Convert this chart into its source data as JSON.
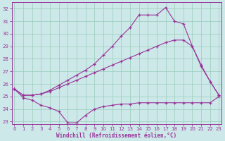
{
  "xlabel": "Windchill (Refroidissement éolien,°C)",
  "bg_color": "#cce8e8",
  "grid_color": "#99ccbb",
  "line_color": "#993399",
  "ylim": [
    22.8,
    32.5
  ],
  "xlim": [
    -0.3,
    23.3
  ],
  "yticks": [
    23,
    24,
    25,
    26,
    27,
    28,
    29,
    30,
    31,
    32
  ],
  "xticks": [
    0,
    1,
    2,
    3,
    4,
    5,
    6,
    7,
    8,
    9,
    10,
    11,
    12,
    13,
    14,
    15,
    16,
    17,
    18,
    19,
    20,
    21,
    22,
    23
  ],
  "series1_x": [
    0,
    1,
    2,
    3,
    4,
    5,
    6,
    7,
    8,
    9,
    10,
    11,
    12,
    13,
    14,
    15,
    16,
    17,
    18,
    19,
    20,
    21,
    22,
    23
  ],
  "series1_y": [
    25.6,
    24.9,
    24.7,
    24.3,
    24.1,
    23.8,
    22.9,
    22.9,
    23.5,
    24.0,
    24.2,
    24.3,
    24.4,
    24.4,
    24.5,
    24.5,
    24.5,
    24.5,
    24.5,
    24.5,
    24.5,
    24.5,
    24.5,
    25.0
  ],
  "series2_x": [
    0,
    1,
    2,
    3,
    4,
    5,
    6,
    7,
    8,
    9,
    10,
    11,
    12,
    13,
    14,
    15,
    16,
    17,
    18,
    19,
    20,
    21,
    22,
    23
  ],
  "series2_y": [
    25.6,
    25.1,
    25.1,
    25.2,
    25.4,
    25.7,
    26.0,
    26.3,
    26.6,
    26.9,
    27.2,
    27.5,
    27.8,
    28.1,
    28.4,
    28.7,
    29.0,
    29.3,
    29.5,
    29.5,
    29.0,
    27.4,
    26.2,
    25.1
  ],
  "series3_x": [
    0,
    1,
    2,
    3,
    4,
    5,
    6,
    7,
    8,
    9,
    10,
    11,
    12,
    13,
    14,
    15,
    16,
    17,
    18,
    19,
    20,
    21,
    22,
    23
  ],
  "series3_y": [
    25.6,
    25.1,
    25.1,
    25.2,
    25.5,
    25.9,
    26.3,
    26.7,
    27.1,
    27.6,
    28.3,
    29.0,
    29.8,
    30.5,
    31.5,
    31.5,
    31.5,
    32.1,
    31.0,
    30.8,
    29.0,
    27.5,
    26.2,
    25.1
  ]
}
